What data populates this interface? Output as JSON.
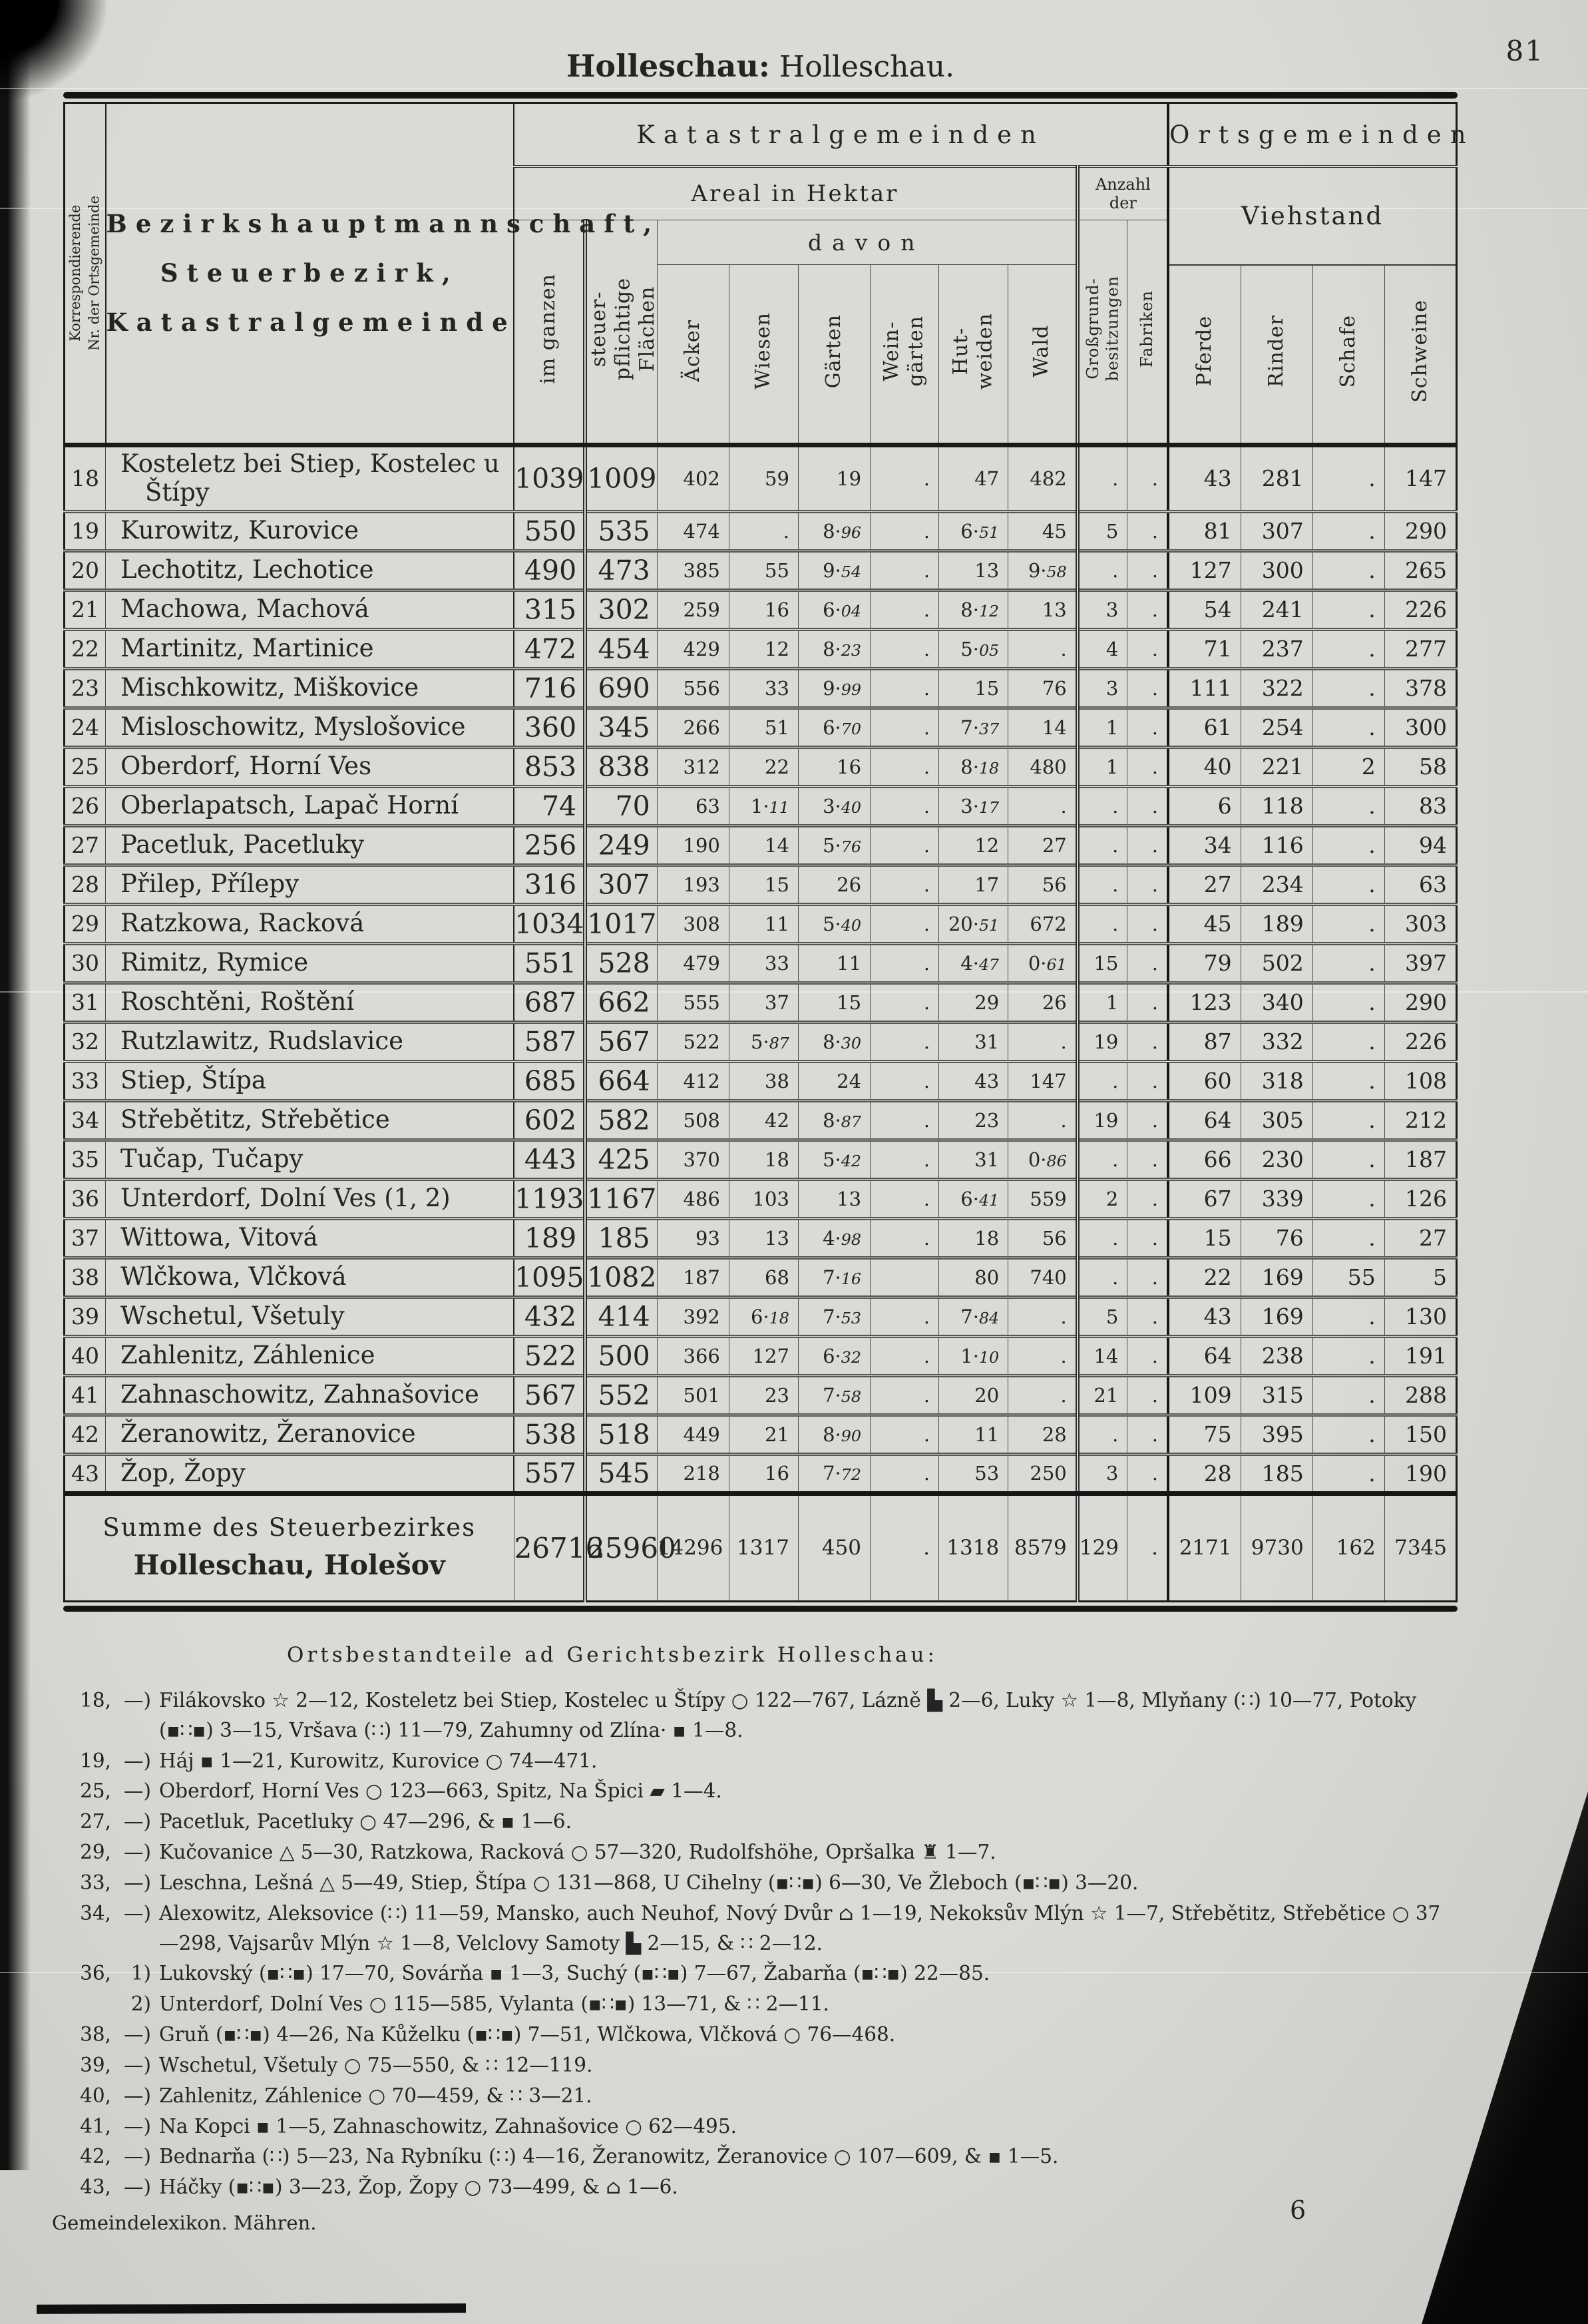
{
  "page": {
    "number": "81",
    "title_district": "Holleschau:",
    "title_place": "Holleschau.",
    "footer_left": "Gemeindelexikon. Mähren.",
    "footer_signature": "6"
  },
  "table": {
    "corr_header": "Korrespondierende\nNr. der Ortsgemeinde",
    "name_header": "Bezirkshauptmannschaft,\nSteuerbezirk,\nKatastralgemeinde",
    "group_katastral": "Katastralgemeinden",
    "group_orts": "Ortsgemeinden",
    "areal_header": "Areal in Hektar",
    "anzahl_header": "Anzahl der",
    "viehstand_header": "Viehstand",
    "davon_header": "davon",
    "col_headers": [
      "im ganzen",
      "steuer-\npflichtige\nFlächen",
      "Äcker",
      "Wiesen",
      "Gärten",
      "Wein-\ngärten",
      "Hut-\nweiden",
      "Wald",
      "Großgrund-\nbesitzungen",
      "Fabriken",
      "Pferde",
      "Rinder",
      "Schafe",
      "Schweine"
    ],
    "rows": [
      {
        "nr": "18",
        "tall": true,
        "name": "Kosteletz bei Stiep, Kostelec u\n Štípy",
        "values": [
          "1039",
          "1009",
          "402",
          "59",
          "19",
          ".",
          "47",
          "482",
          ".",
          ".",
          "43",
          "281",
          ".",
          "147"
        ]
      },
      {
        "nr": "19",
        "name": "Kurowitz, Kurovice",
        "values": [
          "550",
          "535",
          "474",
          ".",
          "8·96",
          ".",
          "6·51",
          "45",
          "5",
          ".",
          "81",
          "307",
          ".",
          "290"
        ]
      },
      {
        "nr": "20",
        "name": "Lechotitz, Lechotice",
        "values": [
          "490",
          "473",
          "385",
          "55",
          "9·54",
          ".",
          "13",
          "9·58",
          ".",
          ".",
          "127",
          "300",
          ".",
          "265"
        ]
      },
      {
        "nr": "21",
        "name": "Machowa, Machová",
        "values": [
          "315",
          "302",
          "259",
          "16",
          "6·04",
          ".",
          "8·12",
          "13",
          "3",
          ".",
          "54",
          "241",
          ".",
          "226"
        ]
      },
      {
        "nr": "22",
        "name": "Martinitz, Martinice",
        "values": [
          "472",
          "454",
          "429",
          "12",
          "8·23",
          ".",
          "5·05",
          ".",
          "4",
          ".",
          "71",
          "237",
          ".",
          "277"
        ]
      },
      {
        "nr": "23",
        "name": "Mischkowitz, Miškovice",
        "values": [
          "716",
          "690",
          "556",
          "33",
          "9·99",
          ".",
          "15",
          "76",
          "3",
          ".",
          "111",
          "322",
          ".",
          "378"
        ]
      },
      {
        "nr": "24",
        "name": "Misloschowitz, Myslošovice",
        "values": [
          "360",
          "345",
          "266",
          "51",
          "6·70",
          ".",
          "7·37",
          "14",
          "1",
          ".",
          "61",
          "254",
          ".",
          "300"
        ]
      },
      {
        "nr": "25",
        "name": "Oberdorf, Horní Ves",
        "values": [
          "853",
          "838",
          "312",
          "22",
          "16",
          ".",
          "8·18",
          "480",
          "1",
          ".",
          "40",
          "221",
          "2",
          "58"
        ]
      },
      {
        "nr": "26",
        "name": "Oberlapatsch, Lapač Horní",
        "values": [
          "74",
          "70",
          "63",
          "1·11",
          "3·40",
          ".",
          "3·17",
          ".",
          ".",
          ".",
          "6",
          "118",
          ".",
          "83"
        ]
      },
      {
        "nr": "27",
        "name": "Pacetluk, Pacetluky",
        "values": [
          "256",
          "249",
          "190",
          "14",
          "5·76",
          ".",
          "12",
          "27",
          ".",
          ".",
          "34",
          "116",
          ".",
          "94"
        ]
      },
      {
        "nr": "28",
        "name": "Přilep, Přílepy",
        "values": [
          "316",
          "307",
          "193",
          "15",
          "26",
          ".",
          "17",
          "56",
          ".",
          ".",
          "27",
          "234",
          ".",
          "63"
        ]
      },
      {
        "nr": "29",
        "name": "Ratzkowa, Racková",
        "values": [
          "1034",
          "1017",
          "308",
          "11",
          "5·40",
          ".",
          "20·51",
          "672",
          ".",
          ".",
          "45",
          "189",
          ".",
          "303"
        ]
      },
      {
        "nr": "30",
        "name": "Rimitz, Rymice",
        "values": [
          "551",
          "528",
          "479",
          "33",
          "11",
          ".",
          "4·47",
          "0·61",
          "15",
          ".",
          "79",
          "502",
          ".",
          "397"
        ]
      },
      {
        "nr": "31",
        "name": "Roschtěni, Roštění",
        "values": [
          "687",
          "662",
          "555",
          "37",
          "15",
          ".",
          "29",
          "26",
          "1",
          ".",
          "123",
          "340",
          ".",
          "290"
        ]
      },
      {
        "nr": "32",
        "name": "Rutzlawitz, Rudslavice",
        "values": [
          "587",
          "567",
          "522",
          "5·87",
          "8·30",
          ".",
          "31",
          ".",
          "19",
          ".",
          "87",
          "332",
          ".",
          "226"
        ]
      },
      {
        "nr": "33",
        "name": "Stiep, Štípa",
        "values": [
          "685",
          "664",
          "412",
          "38",
          "24",
          ".",
          "43",
          "147",
          ".",
          ".",
          "60",
          "318",
          ".",
          "108"
        ]
      },
      {
        "nr": "34",
        "name": "Střebětitz, Střebětice",
        "values": [
          "602",
          "582",
          "508",
          "42",
          "8·87",
          ".",
          "23",
          ".",
          "19",
          ".",
          "64",
          "305",
          ".",
          "212"
        ]
      },
      {
        "nr": "35",
        "name": "Tučap, Tučapy",
        "values": [
          "443",
          "425",
          "370",
          "18",
          "5·42",
          ".",
          "31",
          "0·86",
          ".",
          ".",
          "66",
          "230",
          ".",
          "187"
        ]
      },
      {
        "nr": "36",
        "name": "Unterdorf, Dolní Ves (1, 2)",
        "values": [
          "1193",
          "1167",
          "486",
          "103",
          "13",
          ".",
          "6·41",
          "559",
          "2",
          ".",
          "67",
          "339",
          ".",
          "126"
        ]
      },
      {
        "nr": "37",
        "name": "Wittowa, Vitová",
        "values": [
          "189",
          "185",
          "93",
          "13",
          "4·98",
          ".",
          "18",
          "56",
          ".",
          ".",
          "15",
          "76",
          ".",
          "27"
        ]
      },
      {
        "nr": "38",
        "name": "Wlčkowa, Vlčková",
        "values": [
          "1095",
          "1082",
          "187",
          "68",
          "7·16",
          "",
          "80",
          "740",
          ".",
          ".",
          "22",
          "169",
          "55",
          "5"
        ]
      },
      {
        "nr": "39",
        "name": "Wschetul, Všetuly",
        "values": [
          "432",
          "414",
          "392",
          "6·18",
          "7·53",
          ".",
          "7·84",
          ".",
          "5",
          ".",
          "43",
          "169",
          ".",
          "130"
        ]
      },
      {
        "nr": "40",
        "name": "Zahlenitz, Záhlenice",
        "values": [
          "522",
          "500",
          "366",
          "127",
          "6·32",
          ".",
          "1·10",
          ".",
          "14",
          ".",
          "64",
          "238",
          ".",
          "191"
        ]
      },
      {
        "nr": "41",
        "name": "Zahnaschowitz, Zahnašovice",
        "values": [
          "567",
          "552",
          "501",
          "23",
          "7·58",
          ".",
          "20",
          ".",
          "21",
          ".",
          "109",
          "315",
          ".",
          "288"
        ]
      },
      {
        "nr": "42",
        "name": "Žeranowitz, Žeranovice",
        "values": [
          "538",
          "518",
          "449",
          "21",
          "8·90",
          ".",
          "11",
          "28",
          ".",
          ".",
          "75",
          "395",
          ".",
          "150"
        ]
      },
      {
        "nr": "43",
        "name": "Žop, Žopy",
        "values": [
          "557",
          "545",
          "218",
          "16",
          "7·72",
          ".",
          "53",
          "250",
          "3",
          ".",
          "28",
          "185",
          ".",
          "190"
        ]
      }
    ],
    "sum_label_1": "Summe des Steuerbezirkes",
    "sum_label_2": "Holleschau, Holešov",
    "sum_values": [
      "26716",
      "25960",
      "14296",
      "1317",
      "450",
      ".",
      "1318",
      "8579",
      "129",
      ".",
      "2171",
      "9730",
      "162",
      "7345"
    ]
  },
  "footnotes": {
    "heading": "Ortsbestandteile ad Gerichtsbezirk Holleschau:",
    "items": [
      {
        "num": "18,",
        "mark": "—)",
        "text": "Filákovsko ☆ 2—12, Kosteletz bei Stiep, Kostelec u Štípy ○ 122—767, Lázně ▙ 2—6, Luky ☆ 1—8, Mlyňany (∷) 10—77, Potoky (▪∷▪) 3—15, Vršava (∷) 11—79, Zahumny od Zlína· ▪ 1—8."
      },
      {
        "num": "19,",
        "mark": "—)",
        "text": "Háj ▪ 1—21, Kurowitz, Kurovice ○ 74—471."
      },
      {
        "num": "25,",
        "mark": "—)",
        "text": "Oberdorf, Horní Ves ○ 123—663, Spitz, Na Špici ▰ 1—4."
      },
      {
        "num": "27,",
        "mark": "—)",
        "text": "Pacetluk, Pacetluky ○ 47—296, & ▪ 1—6."
      },
      {
        "num": "29,",
        "mark": "—)",
        "text": "Kučovanice △ 5—30, Ratzkowa, Racková ○ 57—320, Rudolfshöhe, Opršalka ♜ 1—7."
      },
      {
        "num": "33,",
        "mark": "—)",
        "text": "Leschna, Lešná △ 5—49, Stiep, Štípa ○ 131—868, U Cihelny (▪∷▪) 6—30, Ve Žleboch (▪∷▪) 3—20."
      },
      {
        "num": "34,",
        "mark": "—)",
        "text": "Alexowitz, Aleksovice (∷) 11—59, Mansko, auch Neuhof, Nový Dvůr ⌂ 1—19, Nekoksův Mlýn ☆ 1—7, Střebětitz, Střebětice ○ 37—298, Vajsarův Mlýn ☆ 1—8, Velclovy Samoty ▙ 2—15, & ∷ 2—12."
      },
      {
        "num": "36,",
        "mark": "1)",
        "text": "Lukovský (▪∷▪) 17—70, Sovárňa ▪ 1—3, Suchý (▪∷▪) 7—67, Žabarňa (▪∷▪) 22—85."
      },
      {
        "num": "",
        "mark": "2)",
        "text": "Unterdorf, Dolní Ves ○ 115—585, Vylanta (▪∷▪) 13—71, & ∷ 2—11."
      },
      {
        "num": "38,",
        "mark": "—)",
        "text": "Gruň (▪∷▪) 4—26, Na Kůželku (▪∷▪) 7—51, Wlčkowa, Vlčková ○ 76—468."
      },
      {
        "num": "39,",
        "mark": "—)",
        "text": "Wschetul, Všetuly ○ 75—550, & ∷ 12—119."
      },
      {
        "num": "40,",
        "mark": "—)",
        "text": "Zahlenitz, Záhlenice ○ 70—459, & ∷ 3—21."
      },
      {
        "num": "41,",
        "mark": "—)",
        "text": "Na Kopci ▪ 1—5, Zahnaschowitz, Zahnašovice ○ 62—495."
      },
      {
        "num": "42,",
        "mark": "—)",
        "text": "Bednarňa (∷) 5—23, Na Rybníku (∷) 4—16, Žeranowitz, Žeranovice ○ 107—609, & ▪ 1—5."
      },
      {
        "num": "43,",
        "mark": "—)",
        "text": "Háčky (▪∷▪) 3—23, Žop, Žopy ○ 73—499, & ⌂ 1—6."
      }
    ]
  }
}
